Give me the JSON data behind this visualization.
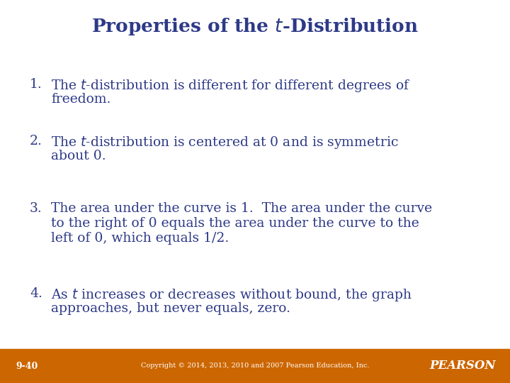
{
  "title_color": "#2E3A87",
  "background_color": "#FFFFFF",
  "footer_bg_color": "#CC6600",
  "footer_text_color": "#FFFFFF",
  "footer_label": "9-40",
  "footer_copyright": "Copyright © 2014, 2013, 2010 and 2007 Pearson Education, Inc.",
  "body_color": "#2E3A87",
  "items": [
    {
      "number": "1.",
      "line1": "The $\\mathit{t}$-distribution is different for different degrees of",
      "line2": "freedom."
    },
    {
      "number": "2.",
      "line1": "The $\\mathit{t}$-distribution is centered at 0 and is symmetric",
      "line2": "about 0."
    },
    {
      "number": "3.",
      "line1": "The area under the curve is 1.  The area under the curve",
      "line2": "to the right of 0 equals the area under the curve to the",
      "line3": "left of 0, which equals 1/2."
    },
    {
      "number": "4.",
      "line1": "As $\\mathit{t}$ increases or decreases without bound, the graph",
      "line2": "approaches, but never equals, zero."
    }
  ],
  "title_fontsize": 19,
  "body_fontsize": 13.5,
  "footer_fontsize": 9,
  "footer_copy_fontsize": 7,
  "pearson_fontsize": 12
}
